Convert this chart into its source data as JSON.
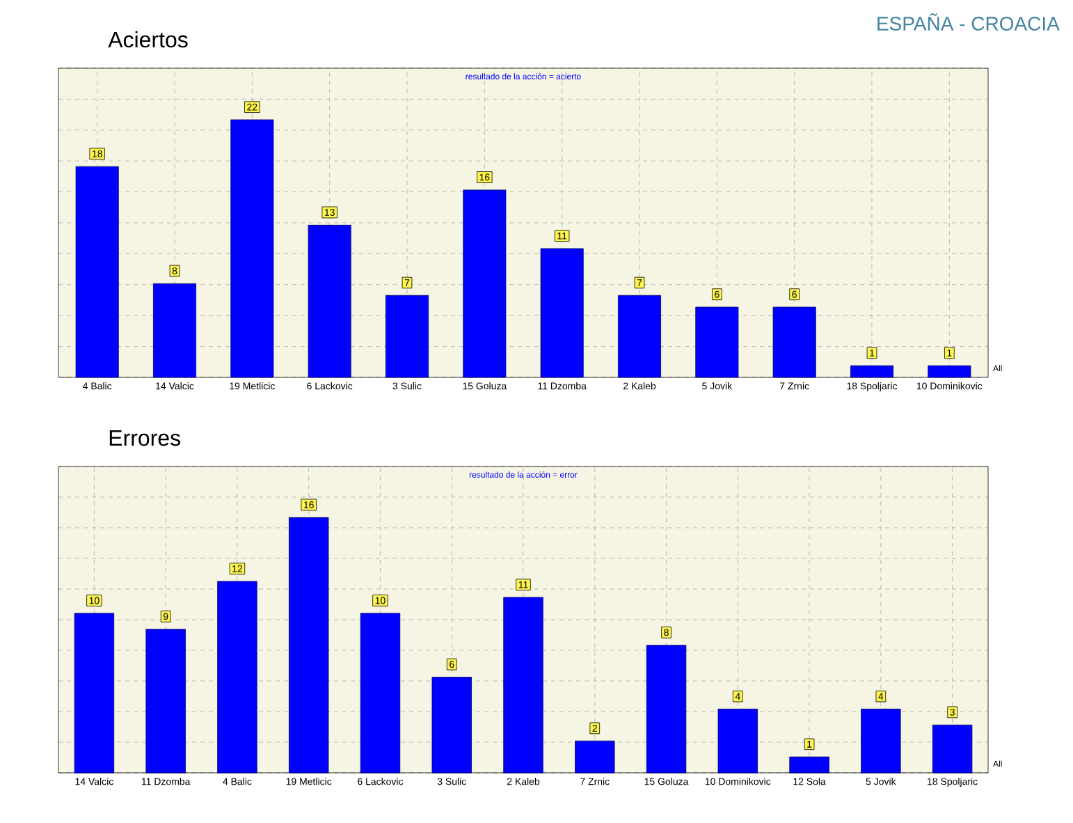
{
  "chart_data": [
    {
      "type": "bar",
      "title": "Aciertos",
      "subtitle": "resultado de la acción = acierto",
      "annotations": [
        "ESPAÑA - CROACIA",
        "All"
      ],
      "categories": [
        "4 Balic",
        "14 Valcic",
        "19 Metlicic",
        "6 Lackovic",
        "3 Sulic",
        "15 Goluza",
        "11 Dzomba",
        "2 Kaleb",
        "5 Jovik",
        "7 Zrnic",
        "18 Spoljaric",
        "10 Dominikovic"
      ],
      "values": [
        18,
        8,
        22,
        13,
        7,
        16,
        11,
        7,
        6,
        6,
        1,
        1
      ],
      "color": "#0000ff",
      "data_labels": true,
      "grid": true,
      "tick_labels": "x"
    },
    {
      "type": "bar",
      "title": "Errores",
      "subtitle": "resultado de la acción = error",
      "annotations": [
        "All"
      ],
      "categories": [
        "14 Valcic",
        "11 Dzomba",
        "4 Balic",
        "19 Metlicic",
        "6 Lackovic",
        "3 Sulic",
        "2 Kaleb",
        "7 Zrnic",
        "15 Goluza",
        "10 Dominikovic",
        "12 Sola",
        "5 Jovik",
        "18 Spoljaric"
      ],
      "values": [
        10,
        9,
        12,
        16,
        10,
        6,
        11,
        2,
        8,
        4,
        1,
        4,
        3
      ],
      "color": "#0000ff",
      "data_labels": true,
      "grid": true,
      "tick_labels": "x"
    }
  ]
}
